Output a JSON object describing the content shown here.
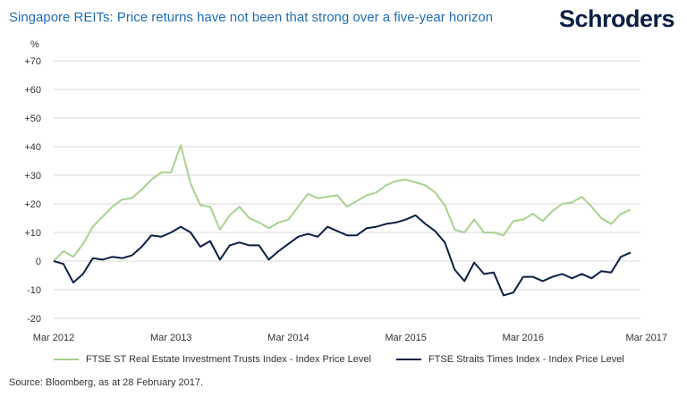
{
  "header": {
    "title": "Singapore REITs: Price returns have not been that strong over a five-year horizon",
    "brand": "Schroders"
  },
  "footer": {
    "source": "Source: Bloomberg, as at 28 February 2017."
  },
  "colors": {
    "reits": "#a9d18e",
    "sti": "#0b1f45",
    "grid": "#d9d9d9"
  },
  "chart_data": {
    "type": "line",
    "y_unit": "%",
    "ylim": [
      -20,
      70
    ],
    "yticks": [
      "+70",
      "+60",
      "+50",
      "+40",
      "+30",
      "+20",
      "+10",
      "0",
      "-10",
      "-20"
    ],
    "ytick_values": [
      70,
      60,
      50,
      40,
      30,
      20,
      10,
      0,
      -10,
      -20
    ],
    "xlim": [
      "Mar 2012",
      "Mar 2017"
    ],
    "xticks": [
      "Mar 2012",
      "Mar 2013",
      "Mar 2014",
      "Mar 2015",
      "Mar 2016",
      "Mar 2017"
    ],
    "grid": "horizontal",
    "legend_position": "bottom",
    "x": [
      "Mar 2012",
      "Apr 2012",
      "May 2012",
      "Jun 2012",
      "Jul 2012",
      "Aug 2012",
      "Sep 2012",
      "Oct 2012",
      "Nov 2012",
      "Dec 2012",
      "Jan 2013",
      "Feb 2013",
      "Mar 2013",
      "Apr 2013",
      "May 2013",
      "Jun 2013",
      "Jul 2013",
      "Aug 2013",
      "Sep 2013",
      "Oct 2013",
      "Nov 2013",
      "Dec 2013",
      "Jan 2014",
      "Feb 2014",
      "Mar 2014",
      "Apr 2014",
      "May 2014",
      "Jun 2014",
      "Jul 2014",
      "Aug 2014",
      "Sep 2014",
      "Oct 2014",
      "Nov 2014",
      "Dec 2014",
      "Jan 2015",
      "Feb 2015",
      "Mar 2015",
      "Apr 2015",
      "May 2015",
      "Jun 2015",
      "Jul 2015",
      "Aug 2015",
      "Sep 2015",
      "Oct 2015",
      "Nov 2015",
      "Dec 2015",
      "Jan 2016",
      "Feb 2016",
      "Mar 2016",
      "Apr 2016",
      "May 2016",
      "Jun 2016",
      "Jul 2016",
      "Aug 2016",
      "Sep 2016",
      "Oct 2016",
      "Nov 2016",
      "Dec 2016",
      "Jan 2017",
      "Feb 2017"
    ],
    "series": [
      {
        "name": "FTSE ST Real Estate Investment Trusts Index - Index Price Level",
        "color": "#a9d18e",
        "values": [
          0,
          3.5,
          1.5,
          6,
          12,
          15.5,
          19,
          21.5,
          22,
          25,
          28.5,
          31,
          31,
          40.5,
          27,
          19.5,
          19,
          11,
          16,
          19,
          15,
          13.5,
          11.5,
          13.5,
          14.5,
          19,
          23.5,
          22,
          22.5,
          23,
          19,
          21,
          23,
          24,
          26.5,
          28,
          28.5,
          27.5,
          26.5,
          24,
          19.5,
          11,
          10,
          14.5,
          10,
          10,
          9,
          14,
          14.5,
          16.5,
          14,
          17.5,
          20,
          20.5,
          22.5,
          19,
          15,
          13,
          16.5,
          18
        ]
      },
      {
        "name": "FTSE Straits Times Index - Index Price Level",
        "color": "#0b1f45",
        "values": [
          0,
          -1,
          -7.5,
          -4.5,
          1,
          0.5,
          1.5,
          1,
          2,
          5,
          9,
          8.5,
          10,
          12,
          10,
          5,
          7,
          0.5,
          5.5,
          6.5,
          5.5,
          5.5,
          0.5,
          3.5,
          6,
          8.5,
          9.5,
          8.5,
          12,
          10.5,
          9,
          9,
          11.5,
          12,
          13,
          13.5,
          14.5,
          16,
          13,
          10.5,
          6.5,
          -3,
          -7,
          -0.5,
          -4.5,
          -4,
          -12,
          -11,
          -5.5,
          -5.5,
          -7,
          -5.5,
          -4.5,
          -6,
          -4.5,
          -6,
          -3.5,
          -4,
          1.5,
          3
        ]
      }
    ]
  }
}
